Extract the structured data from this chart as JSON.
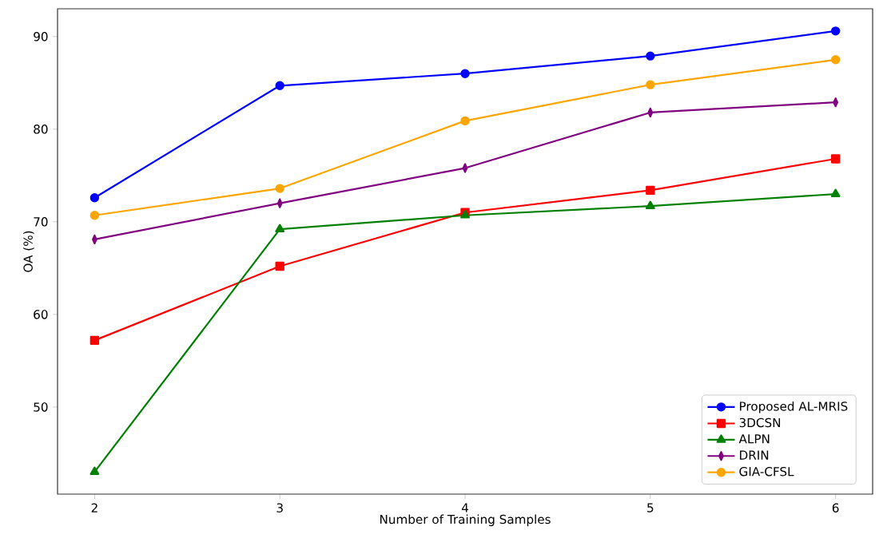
{
  "chart_data": {
    "type": "line",
    "xlabel": "Number of Training Samples",
    "ylabel": "OA (%)",
    "x": [
      2,
      3,
      4,
      5,
      6
    ],
    "series": [
      {
        "name": "Proposed AL-MRIS",
        "color": "#0000ff",
        "marker": "circle",
        "values": [
          72.6,
          84.7,
          86.0,
          87.9,
          90.6
        ]
      },
      {
        "name": "3DCSN",
        "color": "#ff0000",
        "marker": "square",
        "values": [
          57.2,
          65.2,
          71.0,
          73.4,
          76.8
        ]
      },
      {
        "name": "ALPN",
        "color": "#008000",
        "marker": "triangle",
        "values": [
          43.0,
          69.2,
          70.7,
          71.7,
          73.0
        ]
      },
      {
        "name": "DRIN",
        "color": "#800080",
        "marker": "diamond",
        "values": [
          68.1,
          72.0,
          75.8,
          81.8,
          82.9
        ]
      },
      {
        "name": "GIA-CFSL",
        "color": "#ffa500",
        "marker": "circle",
        "values": [
          70.7,
          73.6,
          80.9,
          84.8,
          87.5
        ]
      }
    ],
    "xlim": [
      1.8,
      6.2
    ],
    "ylim": [
      40.6,
      93.0
    ],
    "xticks": [
      2,
      3,
      4,
      5,
      6
    ],
    "yticks": [
      50,
      60,
      70,
      80,
      90
    ],
    "legend": "bottom right",
    "grid": false
  }
}
